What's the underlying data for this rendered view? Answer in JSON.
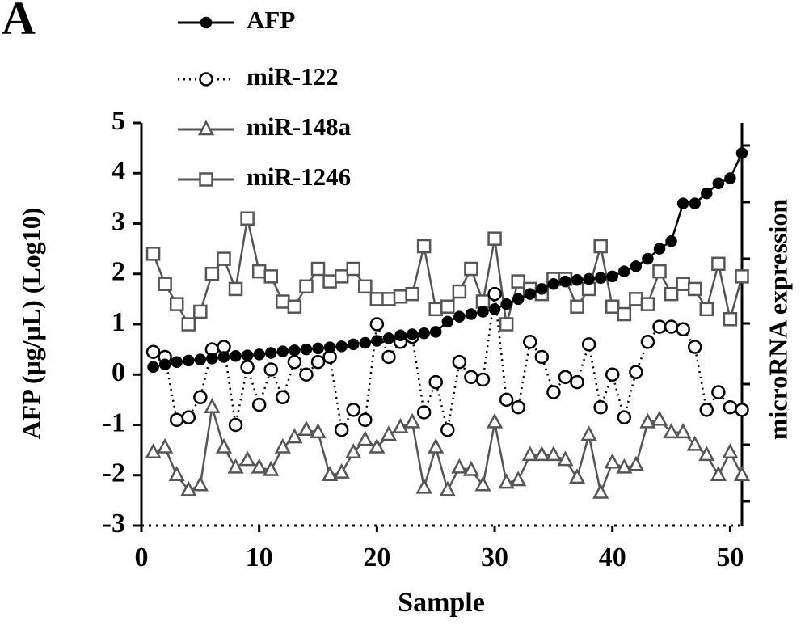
{
  "chart_data": {
    "type": "line",
    "panel_label": "A",
    "xlabel": "Sample",
    "ylabel": "AFP (μg/μL) (Log10)",
    "y2label": "microRNA expression",
    "x": [
      1,
      2,
      3,
      4,
      5,
      6,
      7,
      8,
      9,
      10,
      11,
      12,
      13,
      14,
      15,
      16,
      17,
      18,
      19,
      20,
      21,
      22,
      23,
      24,
      25,
      26,
      27,
      28,
      29,
      30,
      31,
      32,
      33,
      34,
      35,
      36,
      37,
      38,
      39,
      40,
      41,
      42,
      43,
      44,
      45,
      46,
      47,
      48,
      49,
      50,
      51
    ],
    "xlim": [
      0,
      51
    ],
    "xticks": [
      0,
      10,
      20,
      30,
      40,
      50
    ],
    "ylim": [
      -3,
      5
    ],
    "yticks": [
      -3,
      -2,
      -1,
      0,
      1,
      2,
      3,
      4,
      5
    ],
    "series": [
      {
        "name": "AFP",
        "color": "#000000",
        "marker": "filled-circle",
        "linestyle": "solid",
        "values": [
          0.15,
          0.2,
          0.25,
          0.28,
          0.3,
          0.32,
          0.35,
          0.37,
          0.38,
          0.4,
          0.43,
          0.46,
          0.48,
          0.5,
          0.52,
          0.54,
          0.56,
          0.6,
          0.63,
          0.67,
          0.72,
          0.78,
          0.8,
          0.82,
          0.85,
          1.05,
          1.15,
          1.2,
          1.25,
          1.3,
          1.4,
          1.5,
          1.6,
          1.7,
          1.8,
          1.85,
          1.88,
          1.9,
          1.92,
          1.95,
          2.05,
          2.15,
          2.3,
          2.5,
          2.65,
          3.4,
          3.4,
          3.6,
          3.8,
          3.9,
          4.4
        ]
      },
      {
        "name": "miR-122",
        "color": "#000000",
        "marker": "open-circle",
        "linestyle": "dotted",
        "values": [
          0.45,
          0.35,
          -0.9,
          -0.85,
          -0.45,
          0.5,
          0.55,
          -1.0,
          0.15,
          -0.6,
          0.1,
          -0.45,
          0.25,
          0,
          0.25,
          0.35,
          -1.1,
          -0.7,
          -0.9,
          1.0,
          0.35,
          0.65,
          0.75,
          -0.75,
          -0.15,
          -1.1,
          0.25,
          -0.05,
          -0.1,
          1.6,
          -0.5,
          -0.65,
          0.65,
          0.35,
          -0.35,
          -0.05,
          -0.15,
          0.6,
          -0.65,
          0,
          -0.85,
          0.05,
          0.65,
          0.95,
          0.95,
          0.9,
          0.55,
          -0.7,
          -0.35,
          -0.65,
          -0.7
        ]
      },
      {
        "name": "miR-148a",
        "color": "#555555",
        "marker": "open-triangle",
        "linestyle": "solid",
        "values": [
          -1.55,
          -1.45,
          -2.0,
          -2.3,
          -2.2,
          -0.65,
          -1.45,
          -1.85,
          -1.7,
          -1.85,
          -1.9,
          -1.45,
          -1.25,
          -1.1,
          -1.15,
          -2.0,
          -1.95,
          -1.55,
          -1.3,
          -1.45,
          -1.2,
          -1.05,
          -0.95,
          -2.25,
          -1.45,
          -2.3,
          -1.85,
          -1.9,
          -2.2,
          -0.95,
          -2.15,
          -2.1,
          -1.6,
          -1.6,
          -1.6,
          -1.7,
          -2.05,
          -1.2,
          -2.35,
          -1.75,
          -1.85,
          -1.8,
          -0.95,
          -0.9,
          -1.15,
          -1.15,
          -1.4,
          -1.6,
          -2.0,
          -1.55,
          -2.0
        ]
      },
      {
        "name": "miR-1246",
        "color": "#555555",
        "marker": "open-square",
        "linestyle": "solid",
        "values": [
          2.4,
          1.8,
          1.4,
          1.0,
          1.25,
          2.0,
          2.3,
          1.7,
          3.1,
          2.05,
          1.95,
          1.45,
          1.35,
          1.75,
          2.1,
          1.85,
          1.95,
          2.1,
          1.75,
          1.5,
          1.5,
          1.55,
          1.6,
          2.55,
          1.3,
          1.35,
          1.65,
          2.1,
          1.45,
          2.7,
          1.0,
          1.85,
          1.7,
          1.6,
          1.9,
          1.9,
          1.35,
          1.7,
          2.55,
          1.35,
          1.2,
          1.5,
          1.4,
          2.05,
          1.6,
          1.8,
          1.7,
          1.3,
          2.2,
          1.1,
          1.95
        ]
      }
    ]
  }
}
